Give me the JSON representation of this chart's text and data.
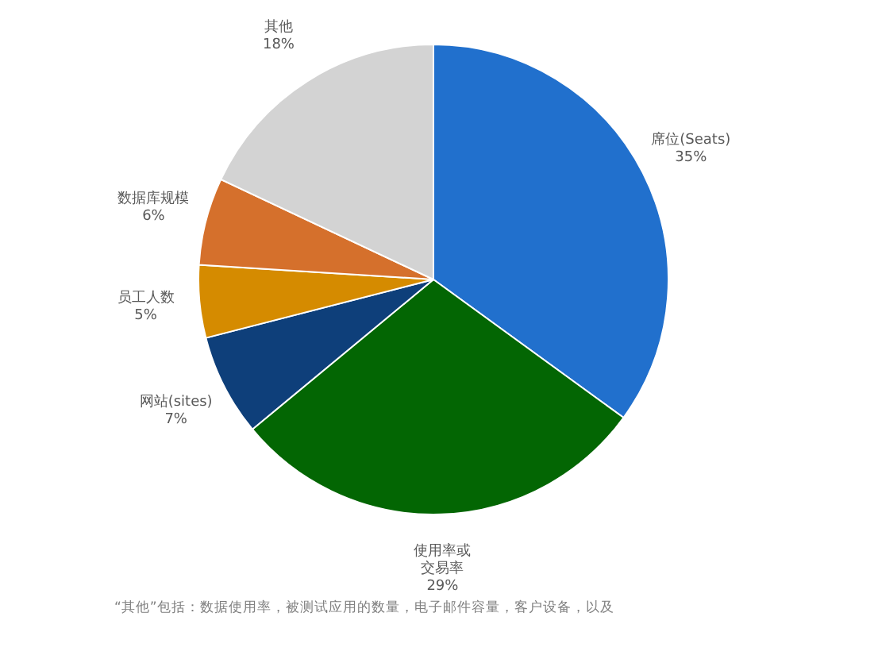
{
  "chart_data": {
    "type": "pie",
    "categories": [
      "席位(Seats)",
      "使用率或交易率",
      "网站(sites)",
      "员工人数",
      "数据库规模",
      "其他"
    ],
    "values": [
      35,
      29,
      7,
      5,
      6,
      18
    ],
    "value_labels": [
      "35%",
      "29%",
      "7%",
      "5%",
      "6%",
      "18%"
    ],
    "colors": [
      "#2170cd",
      "#036603",
      "#0e3f7a",
      "#d58b00",
      "#d5702c",
      "#d3d3d3"
    ],
    "legend": false,
    "annotations": [
      "“其他”包括：数据使用率，被测试应用的数量，电子邮件容量，客户设备，以及"
    ]
  }
}
